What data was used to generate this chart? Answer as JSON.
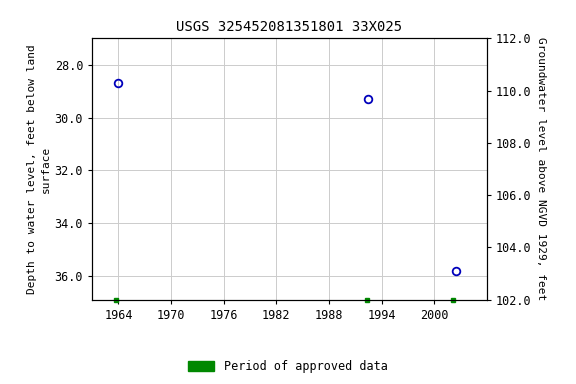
{
  "title": "USGS 325452081351801 33X025",
  "ylabel_left": "Depth to water level, feet below land\nsurface",
  "ylabel_right": "Groundwater level above NGVD 1929, feet",
  "data_points": [
    {
      "x": 1964.0,
      "y_left": 28.7
    },
    {
      "x": 1992.5,
      "y_left": 29.3
    },
    {
      "x": 2002.5,
      "y_left": 35.8
    }
  ],
  "green_squares": [
    1963.7,
    1992.3,
    2002.2
  ],
  "xlim": [
    1961,
    2006
  ],
  "ylim_left": [
    36.9,
    27.0
  ],
  "ylim_right": [
    102.0,
    112.0
  ],
  "xticks": [
    1964,
    1970,
    1976,
    1982,
    1988,
    1994,
    2000
  ],
  "yticks_left": [
    28.0,
    30.0,
    32.0,
    34.0,
    36.0
  ],
  "yticks_right": [
    102.0,
    104.0,
    106.0,
    108.0,
    110.0,
    112.0
  ],
  "point_color": "#0000bb",
  "grid_color": "#cccccc",
  "green_color": "#008800",
  "bg_color": "#ffffff",
  "title_fontsize": 10,
  "axis_label_fontsize": 8,
  "tick_fontsize": 8.5,
  "legend_label": "Period of approved data"
}
